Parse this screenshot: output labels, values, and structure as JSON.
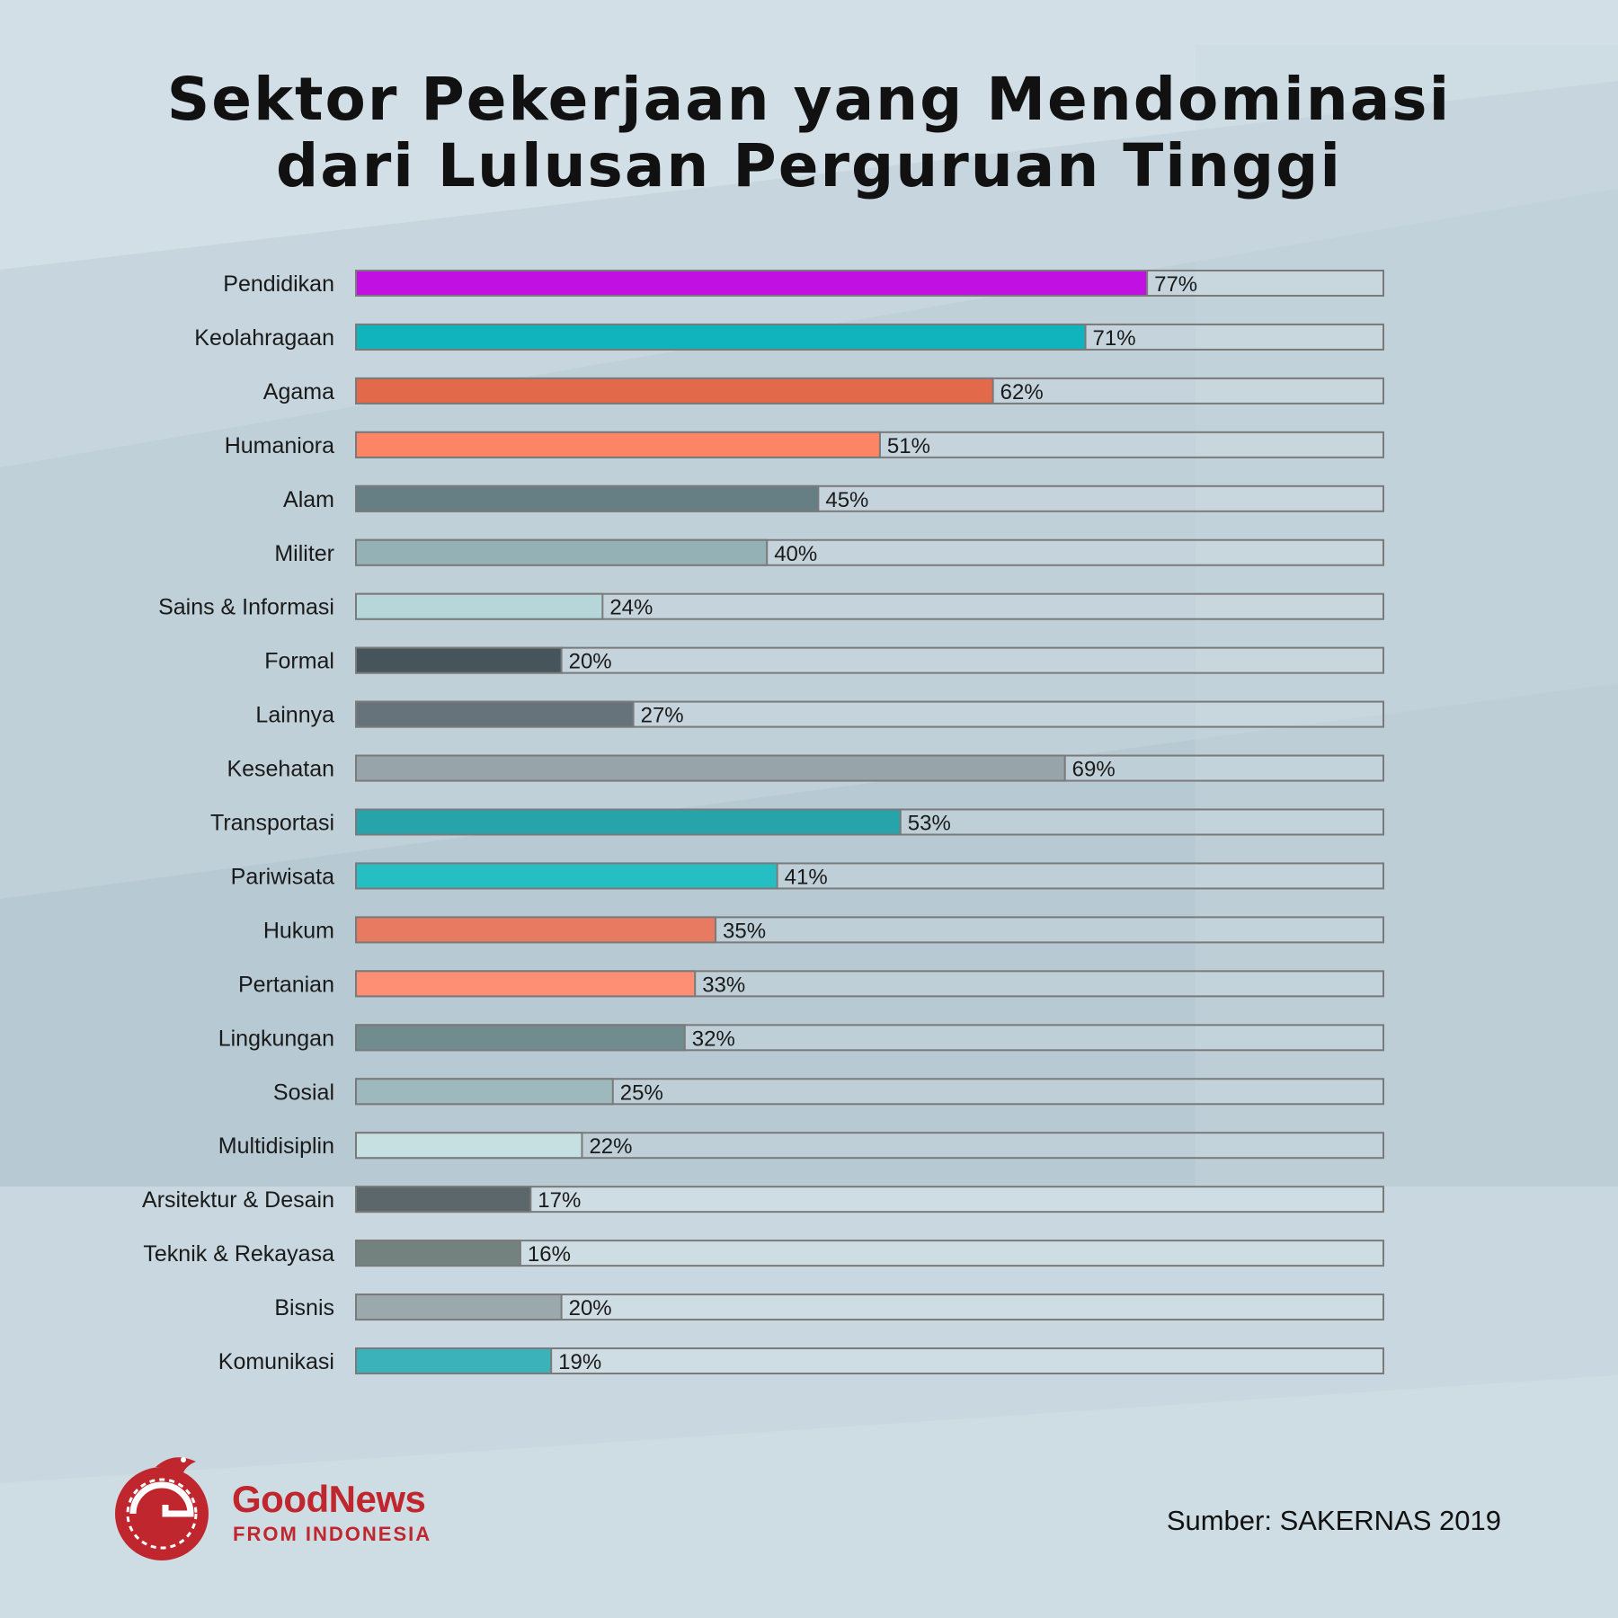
{
  "title": {
    "line1": "Sektor Pekerjaan yang Mendominasi",
    "line2": "dari Lulusan Perguruan Tinggi"
  },
  "chart_data": {
    "type": "bar",
    "orientation": "horizontal",
    "title": "Sektor Pekerjaan yang Mendominasi dari Lulusan Perguruan Tinggi",
    "xlabel": "",
    "ylabel": "",
    "xlim": [
      0,
      100
    ],
    "unit": "%",
    "categories": [
      "Pendidikan",
      "Keolahragaan",
      "Agama",
      "Humaniora",
      "Alam",
      "Militer",
      "Sains & Informasi",
      "Formal",
      "Lainnya",
      "Kesehatan",
      "Transportasi",
      "Pariwisata",
      "Hukum",
      "Pertanian",
      "Lingkungan",
      "Sosial",
      "Multidisiplin",
      "Arsitektur & Desain",
      "Teknik & Rekayasa",
      "Bisnis",
      "Komunikasi"
    ],
    "values": [
      77,
      71,
      62,
      51,
      45,
      40,
      24,
      20,
      27,
      69,
      53,
      41,
      35,
      33,
      32,
      25,
      22,
      17,
      16,
      20,
      19
    ],
    "labels": [
      "77%",
      "71%",
      "62%",
      "51%",
      "45%",
      "40%",
      "24%",
      "20%",
      "27%",
      "69%",
      "53%",
      "41%",
      "35%",
      "33%",
      "32%",
      "25%",
      "22%",
      "17%",
      "16%",
      "20%",
      "19%"
    ],
    "colors": [
      "#c010e2",
      "#10b4bd",
      "#e3694b",
      "#fd8566",
      "#667f85",
      "#94b1b6",
      "#b7d6da",
      "#46545b",
      "#66737a",
      "#97a5aa",
      "#27a4a9",
      "#25bec3",
      "#e87a62",
      "#fe8f74",
      "#718c8f",
      "#9eb9be",
      "#c6dfe1",
      "#5c676c",
      "#73817f",
      "#9ba9ad",
      "#3bb2ba"
    ]
  },
  "source": "Sumber: SAKERNAS 2019",
  "logo": {
    "name": "GoodNews",
    "subtitle": "FROM INDONESIA"
  },
  "colors": {
    "background": "#d2dfe6",
    "track_border": "#7a7a7a",
    "brand": "#c0262d"
  }
}
